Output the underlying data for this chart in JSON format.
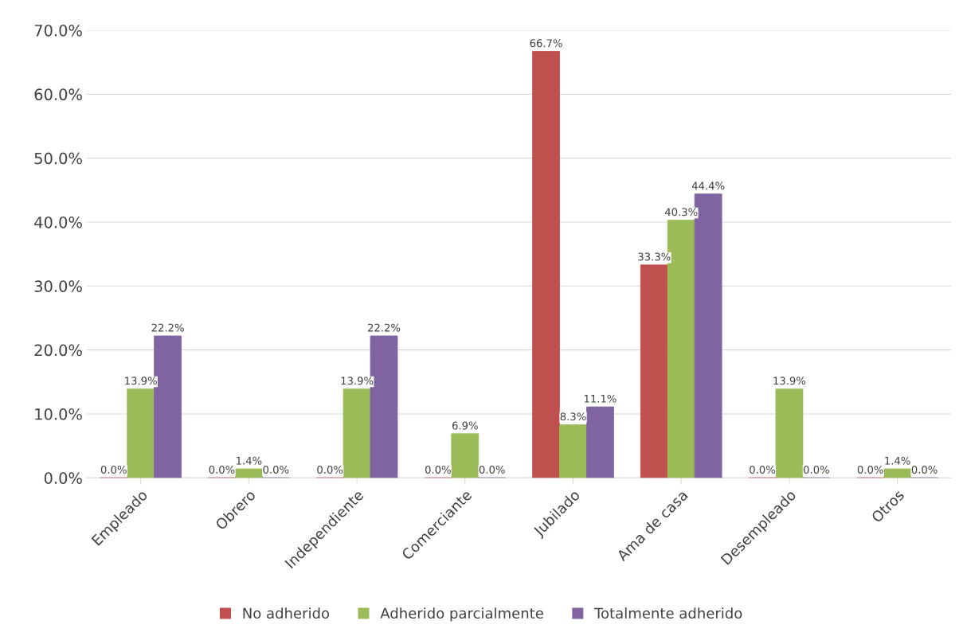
{
  "chart_data": {
    "type": "bar",
    "categories": [
      "Empleado",
      "Obrero",
      "Independiente",
      "Comerciante",
      "Jubilado",
      "Ama de casa",
      "Desempleado",
      "Otros"
    ],
    "series": [
      {
        "name": "No adherido",
        "color": "#c0504d",
        "values": [
          0.0,
          0.0,
          0.0,
          0.0,
          66.7,
          33.3,
          0.0,
          0.0
        ],
        "value_labels": [
          "0.0%",
          "0.0%",
          "0.0%",
          "0.0%",
          "66.7%",
          "33.3%",
          "0.0%",
          "0.0%"
        ]
      },
      {
        "name": "Adherido parcialmente",
        "color": "#9bbb59",
        "values": [
          13.9,
          1.4,
          13.9,
          6.9,
          8.3,
          40.3,
          13.9,
          1.4
        ],
        "value_labels": [
          "13.9%",
          "1.4%",
          "13.9%",
          "6.9%",
          "8.3%",
          "40.3%",
          "13.9%",
          "1.4%"
        ]
      },
      {
        "name": "Totalmente adherido",
        "color": "#8064a2",
        "values": [
          22.2,
          0.0,
          22.2,
          0.0,
          11.1,
          44.4,
          0.0,
          0.0
        ],
        "value_labels": [
          "22.2%",
          "0.0%",
          "22.2%",
          "0.0%",
          "11.1%",
          "44.4%",
          "0.0%",
          "0.0%"
        ]
      }
    ],
    "ylim": [
      0,
      70
    ],
    "yticks": [
      {
        "value": 0,
        "label": "0.0%"
      },
      {
        "value": 10,
        "label": "10.0%"
      },
      {
        "value": 20,
        "label": "20.0%"
      },
      {
        "value": 30,
        "label": "30.0%"
      },
      {
        "value": 40,
        "label": "40.0%"
      },
      {
        "value": 50,
        "label": "50.0%"
      },
      {
        "value": 60,
        "label": "60.0%"
      },
      {
        "value": 70,
        "label": "70.0%"
      }
    ],
    "grid": "y",
    "legend": "bottom"
  }
}
